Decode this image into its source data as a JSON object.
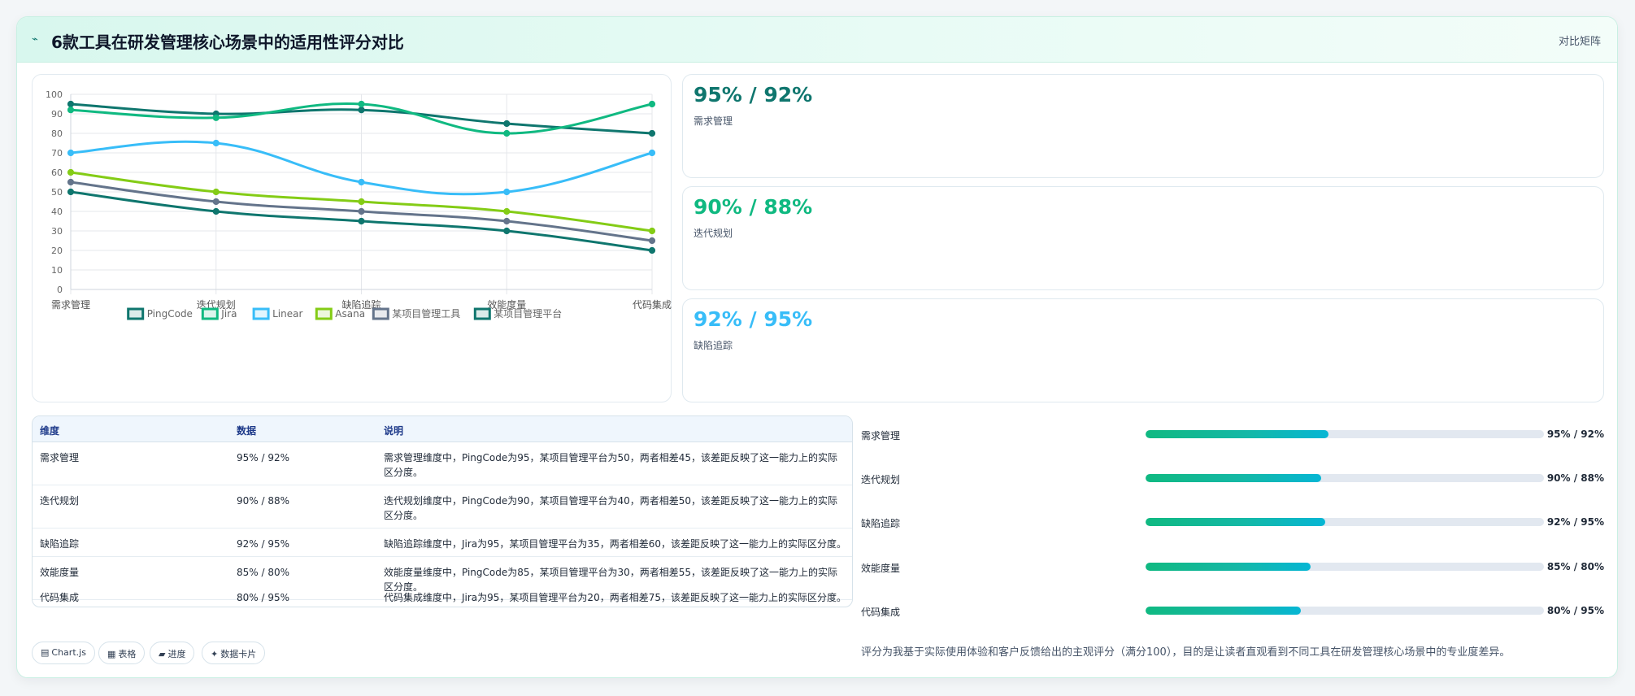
{
  "header": {
    "title": "6款工具在研发管理核心场景中的适用性评分对比",
    "tag": "对比矩阵"
  },
  "stats": [
    {
      "value": "95% / 92%",
      "label": "需求管理",
      "color": "#0f766e"
    },
    {
      "value": "90% / 88%",
      "label": "迭代规划",
      "color": "#10b981"
    },
    {
      "value": "92% / 95%",
      "label": "缺陷追踪",
      "color": "#38bdf8"
    }
  ],
  "table": {
    "headers": [
      "维度",
      "数据",
      "说明"
    ],
    "rows": [
      {
        "dim": "需求管理",
        "data": "95% / 92%",
        "desc": "需求管理维度中，PingCode为95，某项目管理平台为50，两者相差45，该差距反映了这一能力上的实际区分度。"
      },
      {
        "dim": "迭代规划",
        "data": "90% / 88%",
        "desc": "迭代规划维度中，PingCode为90，某项目管理平台为40，两者相差50，该差距反映了这一能力上的实际区分度。"
      },
      {
        "dim": "缺陷追踪",
        "data": "92% / 95%",
        "desc": "缺陷追踪维度中，Jira为95，某项目管理平台为35，两者相差60，该差距反映了这一能力上的实际区分度。"
      },
      {
        "dim": "效能度量",
        "data": "85% / 80%",
        "desc": "效能度量维度中，PingCode为85，某项目管理平台为30，两者相差55，该差距反映了这一能力上的实际区分度。"
      },
      {
        "dim": "代码集成",
        "data": "80% / 95%",
        "desc": "代码集成维度中，Jira为95，某项目管理平台为20，两者相差75，该差距反映了这一能力上的实际区分度。"
      }
    ]
  },
  "progress": [
    {
      "label": "需求管理",
      "value": "95% / 92%",
      "fraction": 0.46
    },
    {
      "label": "迭代规划",
      "value": "90% / 88%",
      "fraction": 0.44
    },
    {
      "label": "缺陷追踪",
      "value": "92% / 95%",
      "fraction": 0.45
    },
    {
      "label": "效能度量",
      "value": "85% / 80%",
      "fraction": 0.415
    },
    {
      "label": "代码集成",
      "value": "80% / 95%",
      "fraction": 0.39
    }
  ],
  "note": "评分为我基于实际使用体验和客户反馈给出的主观评分（满分100），目的是让读者直观看到不同工具在研发管理核心场景中的专业度差异。",
  "chips": [
    {
      "icon": "chart-icon",
      "label": "Chart.js"
    },
    {
      "icon": "table-icon",
      "label": "表格"
    },
    {
      "icon": "progress-icon",
      "label": "进度"
    },
    {
      "icon": "card-icon",
      "label": "数据卡片"
    }
  ],
  "chart_data": {
    "type": "line",
    "categories": [
      "需求管理",
      "迭代规划",
      "缺陷追踪",
      "效能度量",
      "代码集成"
    ],
    "ylim": [
      0,
      100
    ],
    "yticks": [
      0,
      10,
      20,
      30,
      40,
      50,
      60,
      70,
      80,
      90,
      100
    ],
    "grid": true,
    "legend_position": "bottom",
    "series": [
      {
        "name": "PingCode",
        "values": [
          95,
          90,
          92,
          85,
          80
        ],
        "color": "#0f766e"
      },
      {
        "name": "Jira",
        "values": [
          92,
          88,
          95,
          80,
          95
        ],
        "color": "#10b981"
      },
      {
        "name": "Linear",
        "values": [
          70,
          75,
          55,
          50,
          70
        ],
        "color": "#38bdf8"
      },
      {
        "name": "Asana",
        "values": [
          60,
          50,
          45,
          40,
          30
        ],
        "color": "#84cc16"
      },
      {
        "name": "某项目管理工具",
        "values": [
          55,
          45,
          40,
          35,
          25
        ],
        "color": "#64748b"
      },
      {
        "name": "某项目管理平台",
        "values": [
          50,
          40,
          35,
          30,
          20
        ],
        "color": "#0f766e"
      }
    ]
  }
}
